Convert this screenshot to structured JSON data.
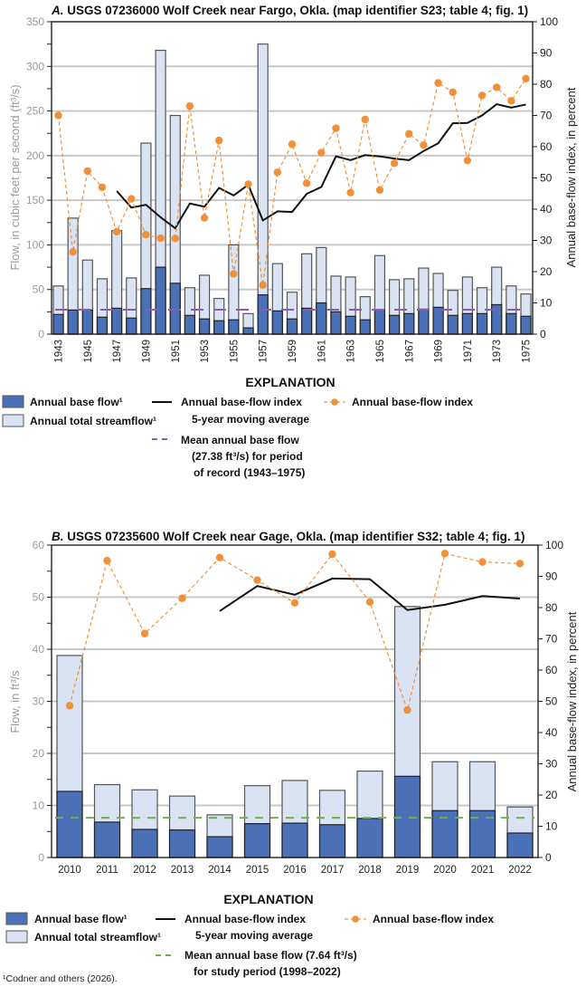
{
  "colors": {
    "base_flow": "#4a70b8",
    "total_streamflow": "#dae3f3",
    "index_line": "#f0913a",
    "moving_avg": "#111111",
    "mean_line_a": "#8a5cb4",
    "mean_line_b": "#72b04c",
    "gridline": "#c8c8c8"
  },
  "chart_data": [
    {
      "type": "bar",
      "title": "A. USGS 07236000 Wolf Creek near Fargo, Okla. (map identifier S23; table 4; fig. 1)",
      "title_letter": "A.",
      "title_rest": " USGS 07236000 Wolf Creek near Fargo, Okla. (map identifier S23; table 4; fig. 1)",
      "ylabel": "Flow, in cubic feet per second (ft³/s)",
      "y2label": "Annual base-flow index, in  percent",
      "ylim": [
        0,
        350
      ],
      "y2lim": [
        0,
        100
      ],
      "yticks": [
        0,
        50,
        100,
        150,
        200,
        250,
        300,
        350
      ],
      "y2ticks": [
        0,
        10,
        20,
        30,
        40,
        50,
        60,
        70,
        80,
        90,
        100
      ],
      "grid": true,
      "x": [
        1943,
        1944,
        1945,
        1946,
        1947,
        1948,
        1949,
        1950,
        1951,
        1952,
        1953,
        1954,
        1955,
        1956,
        1957,
        1958,
        1959,
        1960,
        1961,
        1962,
        1963,
        1964,
        1965,
        1966,
        1967,
        1968,
        1969,
        1970,
        1971,
        1972,
        1973,
        1974,
        1975
      ],
      "xtick_labels": [
        "1943",
        "1945",
        "1947",
        "1949",
        "1951",
        "1953",
        "1955",
        "1957",
        "1959",
        "1961",
        "1963",
        "1965",
        "1967",
        "1969",
        "1971",
        "1973",
        "1975"
      ],
      "series": [
        {
          "name": "Annual total streamflow",
          "kind": "bar",
          "values": [
            54,
            130,
            83,
            62,
            116,
            63,
            214,
            318,
            245,
            52,
            66,
            40,
            100,
            23,
            325,
            79,
            47,
            90,
            97,
            65,
            64,
            42,
            88,
            61,
            62,
            74,
            68,
            49,
            64,
            52,
            75,
            54,
            45
          ]
        },
        {
          "name": "Annual base flow",
          "kind": "bar",
          "values": [
            22,
            27,
            27,
            19,
            29,
            18,
            51,
            75,
            57,
            21,
            17,
            15,
            16,
            7,
            44,
            26,
            17,
            29,
            35,
            25,
            20,
            16,
            27,
            21,
            23,
            28,
            30,
            21,
            23,
            23,
            33,
            23,
            20
          ]
        },
        {
          "name": "Annual base-flow index",
          "kind": "line",
          "axis": "right",
          "values": [
            70.0,
            26.3,
            52.2,
            47.0,
            32.8,
            43.3,
            31.8,
            30.7,
            30.6,
            73.0,
            37.2,
            62.0,
            19.3,
            48.0,
            15.7,
            51.8,
            60.8,
            48.3,
            58.1,
            65.9,
            45.3,
            68.7,
            46.1,
            54.7,
            64.1,
            60.5,
            80.4,
            77.4,
            55.6,
            76.4,
            79.0,
            74.7,
            81.8
          ]
        },
        {
          "name": "Annual base-flow index 5-year moving average",
          "kind": "line",
          "axis": "right",
          "values": [
            null,
            null,
            null,
            null,
            45.8,
            40.5,
            41.4,
            37.4,
            33.9,
            41.8,
            40.8,
            46.8,
            44.4,
            47.8,
            36.4,
            39.3,
            39.1,
            44.9,
            47.1,
            56.9,
            55.7,
            57.3,
            56.9,
            56.2,
            55.7,
            58.6,
            61.1,
            67.5,
            67.6,
            70.0,
            73.6,
            72.5,
            73.5
          ]
        }
      ],
      "mean_base_flow": 27.38,
      "legend": {
        "heading": "EXPLANATION",
        "base_flow": "Annual base flow¹",
        "total_streamflow": "Annual total streamflow¹",
        "moving_avg_line1": "Annual base-flow index",
        "moving_avg_line2": "5-year moving average",
        "mean_line1": "Mean annual base flow",
        "mean_line2": "(27.38 ft³/s) for period",
        "mean_line3": "of record (1943–1975)",
        "index": "Annual base-flow index"
      }
    },
    {
      "type": "bar",
      "title": "B. USGS 07235600 Wolf Creek near Gage, Okla. (map identifier S32; table 4; fig. 1)",
      "title_letter": "B.",
      "title_rest": " USGS 07235600 Wolf Creek near Gage, Okla. (map identifier S32; table 4; fig. 1)",
      "ylabel": "Flow, in ft³/s",
      "y2label": "Annual base-flow index, in  percent",
      "ylim": [
        0,
        60
      ],
      "y2lim": [
        0,
        100
      ],
      "yticks": [
        0,
        10,
        20,
        30,
        40,
        50,
        60
      ],
      "y2ticks": [
        0,
        10,
        20,
        30,
        40,
        50,
        60,
        70,
        80,
        90,
        100
      ],
      "grid": true,
      "x": [
        2010,
        2011,
        2012,
        2013,
        2014,
        2015,
        2016,
        2017,
        2018,
        2019,
        2020,
        2021,
        2022
      ],
      "xtick_labels": [
        "2010",
        "2011",
        "2012",
        "2013",
        "2014",
        "2015",
        "2016",
        "2017",
        "2018",
        "2019",
        "2020",
        "2021",
        "2022"
      ],
      "series": [
        {
          "name": "Annual total streamflow",
          "kind": "bar",
          "values": [
            38.8,
            14.0,
            13.0,
            11.8,
            8.2,
            13.8,
            14.8,
            12.9,
            16.6,
            48.2,
            18.4,
            18.4,
            9.7
          ]
        },
        {
          "name": "Annual base flow",
          "kind": "bar",
          "values": [
            12.7,
            6.8,
            5.4,
            5.3,
            4.0,
            6.5,
            6.6,
            6.3,
            7.5,
            15.6,
            9.0,
            9.0,
            4.7
          ]
        },
        {
          "name": "Annual base-flow index",
          "kind": "line",
          "axis": "right",
          "values": [
            48.6,
            95.0,
            71.7,
            83.0,
            96.0,
            88.8,
            81.5,
            97.1,
            81.8,
            47.2,
            97.3,
            94.6,
            94.1
          ]
        },
        {
          "name": "Annual base-flow index 5-year moving average",
          "kind": "line",
          "axis": "right",
          "values": [
            null,
            null,
            null,
            null,
            78.9,
            86.9,
            84.1,
            89.3,
            89.1,
            79.2,
            80.9,
            83.7,
            82.9
          ]
        }
      ],
      "mean_base_flow": 7.64,
      "legend": {
        "heading": "EXPLANATION",
        "base_flow": "Annual base flow¹",
        "total_streamflow": "Annual total streamflow¹",
        "moving_avg_line1": "Annual base-flow index",
        "moving_avg_line2": "5-year moving average",
        "mean_line1": "Mean annual base flow (7.64 ft³/s)",
        "mean_line2": "for study period (1998–2022)",
        "index": "Annual base-flow index"
      }
    }
  ],
  "footnote": "¹Codner and others (2026)."
}
